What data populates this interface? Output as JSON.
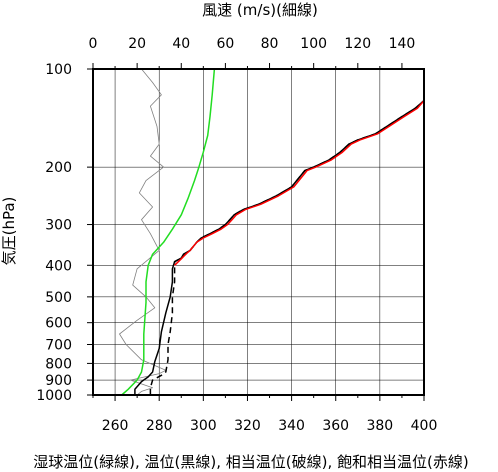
{
  "chart_data": {
    "type": "line",
    "top_axis": {
      "title": "風速 (m/s)(細線)",
      "range": [
        0,
        150
      ],
      "ticks": [
        "0",
        "20",
        "40",
        "60",
        "80",
        "100",
        "120",
        "140"
      ],
      "tick_values": [
        0,
        20,
        40,
        60,
        80,
        100,
        120,
        140
      ]
    },
    "bottom_axis": {
      "title": "湿球温位(緑線), 温位(黒線), 相当温位(破線), 飽和相当温位(赤線)",
      "range": [
        250,
        400
      ],
      "ticks": [
        "260",
        "280",
        "300",
        "320",
        "340",
        "360",
        "380",
        "400"
      ],
      "tick_values": [
        260,
        280,
        300,
        320,
        340,
        360,
        380,
        400
      ]
    },
    "left_axis": {
      "title": "気圧(hPa)",
      "scale": "log",
      "range": [
        1000,
        100
      ],
      "ticks": [
        "100",
        "200",
        "300",
        "400",
        "500",
        "600",
        "700",
        "800",
        "900",
        "1000"
      ],
      "tick_values": [
        100,
        200,
        300,
        400,
        500,
        600,
        700,
        800,
        900,
        1000
      ]
    },
    "grid": true,
    "series": [
      {
        "name": "風速",
        "axis": "top",
        "color": "#808080",
        "style": "thin",
        "points": [
          [
            20,
            1000
          ],
          [
            22,
            975
          ],
          [
            27,
            950
          ],
          [
            17,
            900
          ],
          [
            30,
            860
          ],
          [
            33,
            840
          ],
          [
            22,
            780
          ],
          [
            15,
            700
          ],
          [
            12,
            650
          ],
          [
            20,
            590
          ],
          [
            28,
            540
          ],
          [
            24,
            500
          ],
          [
            18,
            460
          ],
          [
            20,
            410
          ],
          [
            30,
            360
          ],
          [
            26,
            320
          ],
          [
            22,
            290
          ],
          [
            27,
            265
          ],
          [
            21,
            240
          ],
          [
            24,
            220
          ],
          [
            32,
            200
          ],
          [
            26,
            185
          ],
          [
            30,
            170
          ],
          [
            29,
            150
          ],
          [
            26,
            130
          ],
          [
            31,
            120
          ],
          [
            27,
            110
          ],
          [
            22,
            100
          ]
        ]
      },
      {
        "name": "湿球温位",
        "axis": "bottom",
        "color": "#22dd22",
        "style": "solid",
        "points": [
          [
            263,
            1000
          ],
          [
            266,
            960
          ],
          [
            270,
            900
          ],
          [
            272,
            850
          ],
          [
            273,
            780
          ],
          [
            273,
            650
          ],
          [
            274,
            520
          ],
          [
            274,
            450
          ],
          [
            275,
            400
          ],
          [
            277,
            370
          ],
          [
            282,
            340
          ],
          [
            286,
            310
          ],
          [
            290,
            280
          ],
          [
            293,
            250
          ],
          [
            296,
            220
          ],
          [
            298,
            200
          ],
          [
            300,
            180
          ],
          [
            302,
            160
          ],
          [
            303,
            140
          ],
          [
            304,
            120
          ],
          [
            305,
            100
          ]
        ]
      },
      {
        "name": "温位",
        "axis": "bottom",
        "color": "#000000",
        "style": "solid",
        "points": [
          [
            269,
            1000
          ],
          [
            269,
            960
          ],
          [
            272,
            910
          ],
          [
            275,
            880
          ],
          [
            277,
            850
          ],
          [
            278,
            790
          ],
          [
            280,
            720
          ],
          [
            281,
            640
          ],
          [
            283,
            560
          ],
          [
            285,
            500
          ],
          [
            286,
            450
          ],
          [
            286,
            410
          ],
          [
            287,
            390
          ],
          [
            290,
            380
          ],
          [
            291,
            370
          ],
          [
            294,
            360
          ],
          [
            297,
            340
          ],
          [
            299,
            330
          ],
          [
            303,
            320
          ],
          [
            307,
            310
          ],
          [
            310,
            300
          ],
          [
            312,
            290
          ],
          [
            314,
            280
          ],
          [
            318,
            270
          ],
          [
            325,
            260
          ],
          [
            333,
            245
          ],
          [
            340,
            230
          ],
          [
            346,
            205
          ],
          [
            350,
            200
          ],
          [
            357,
            190
          ],
          [
            362,
            180
          ],
          [
            366,
            170
          ],
          [
            370,
            165
          ],
          [
            378,
            158
          ],
          [
            390,
            140
          ],
          [
            396,
            132
          ],
          [
            400,
            125
          ]
        ]
      },
      {
        "name": "相当温位",
        "axis": "bottom",
        "color": "#000000",
        "style": "dashed",
        "points": [
          [
            276,
            1000
          ],
          [
            276,
            950
          ],
          [
            277,
            900
          ],
          [
            281,
            870
          ],
          [
            283,
            850
          ],
          [
            284,
            780
          ],
          [
            284,
            700
          ],
          [
            285,
            640
          ],
          [
            286,
            560
          ],
          [
            286,
            500
          ],
          [
            287,
            450
          ],
          [
            287,
            410
          ],
          [
            287,
            390
          ],
          [
            290,
            380
          ],
          [
            292,
            370
          ],
          [
            294,
            360
          ],
          [
            297,
            340
          ],
          [
            299,
            330
          ],
          [
            303,
            320
          ],
          [
            307,
            310
          ],
          [
            310,
            300
          ],
          [
            312,
            290
          ],
          [
            314,
            280
          ],
          [
            318,
            270
          ],
          [
            325,
            260
          ],
          [
            333,
            245
          ],
          [
            340,
            230
          ],
          [
            346,
            205
          ],
          [
            350,
            200
          ],
          [
            357,
            190
          ],
          [
            362,
            180
          ],
          [
            366,
            170
          ],
          [
            370,
            165
          ],
          [
            378,
            158
          ],
          [
            390,
            140
          ],
          [
            396,
            132
          ],
          [
            400,
            125
          ]
        ]
      },
      {
        "name": "飽和相当温位",
        "axis": "bottom",
        "color": "#ff0000",
        "style": "solid",
        "points": [
          [
            287,
            400
          ],
          [
            290,
            382
          ],
          [
            292,
            370
          ],
          [
            294,
            360
          ],
          [
            297,
            340
          ],
          [
            300,
            330
          ],
          [
            304,
            320
          ],
          [
            308,
            310
          ],
          [
            311,
            300
          ],
          [
            313,
            290
          ],
          [
            315,
            280
          ],
          [
            319,
            270
          ],
          [
            326,
            260
          ],
          [
            334,
            245
          ],
          [
            341,
            230
          ],
          [
            347,
            205
          ],
          [
            351,
            200
          ],
          [
            358,
            190
          ],
          [
            363,
            180
          ],
          [
            367,
            170
          ],
          [
            371,
            165
          ],
          [
            379,
            158
          ],
          [
            391,
            140
          ],
          [
            397,
            132
          ],
          [
            400,
            125
          ]
        ]
      }
    ]
  }
}
